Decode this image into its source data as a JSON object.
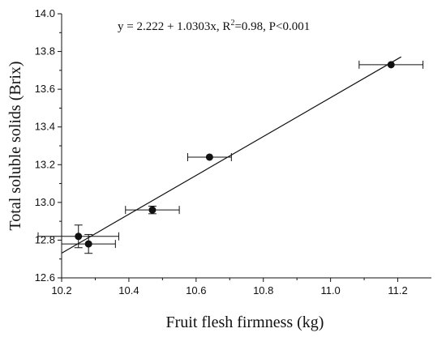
{
  "chart_data": {
    "type": "scatter",
    "xlabel": "Fruit flesh firmness (kg)",
    "ylabel": "Total soluble solids (Brix)",
    "xlim": [
      10.2,
      11.3
    ],
    "ylim": [
      12.6,
      14.0
    ],
    "x_ticks": [
      "10.2",
      "10.4",
      "10.6",
      "10.8",
      "11.0",
      "11.2"
    ],
    "y_ticks": [
      "12.6",
      "12.8",
      "13.0",
      "13.2",
      "13.4",
      "13.6",
      "13.8",
      "14.0"
    ],
    "points": [
      {
        "x": 10.25,
        "y": 12.82,
        "x_err": 0.12,
        "y_err": 0.06
      },
      {
        "x": 10.28,
        "y": 12.78,
        "x_err": 0.08,
        "y_err": 0.05
      },
      {
        "x": 10.47,
        "y": 12.96,
        "x_err": 0.08,
        "y_err": 0.02
      },
      {
        "x": 10.64,
        "y": 13.24,
        "x_err": 0.065,
        "y_err": 0.0
      },
      {
        "x": 11.18,
        "y": 13.73,
        "x_err": 0.095,
        "y_err": 0.0
      }
    ],
    "regression": {
      "intercept": 2.222,
      "slope": 1.0303,
      "x_range": [
        10.2,
        11.21
      ],
      "equation_prefix": "y = 2.222 + 1.0303x, R",
      "equation_superscript": "2",
      "equation_suffix": "=0.98, P<0.001"
    },
    "grid": false,
    "legend": "none"
  }
}
